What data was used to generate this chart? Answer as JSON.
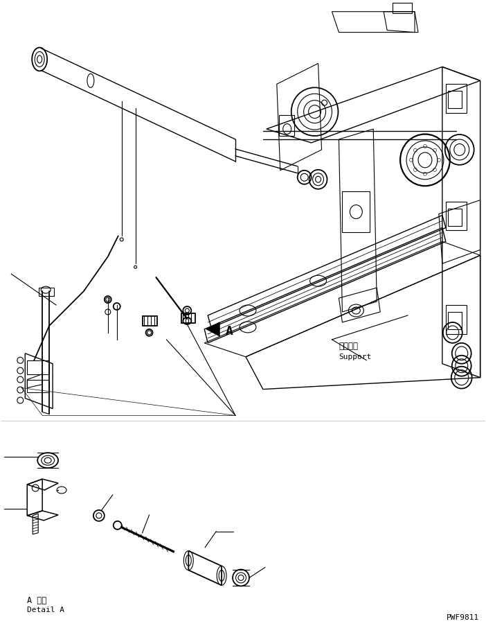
{
  "bg_color": "#ffffff",
  "line_color": "#000000",
  "lw": 0.8,
  "fig_width": 7.02,
  "fig_height": 9.06,
  "dpi": 100,
  "label_support_jp": "サポート",
  "label_support_en": "Support",
  "label_detail_jp": "A 詳細",
  "label_detail_en": "Detail A",
  "label_part_number": "PWF9811",
  "label_A": "A"
}
